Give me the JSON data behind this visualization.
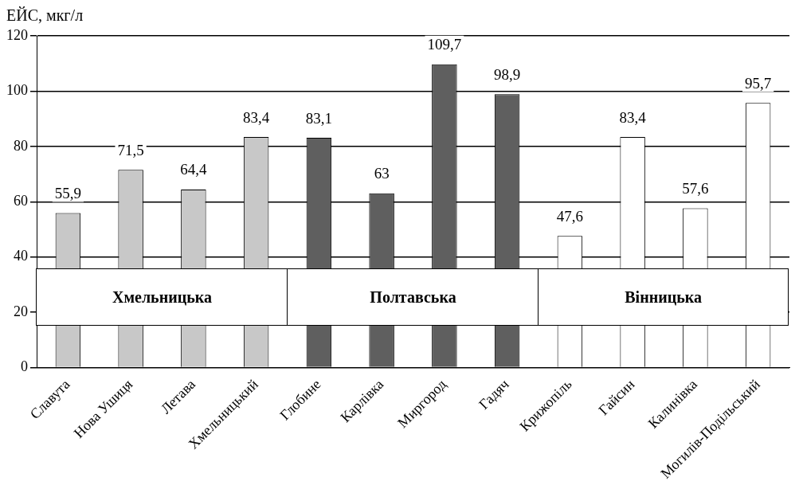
{
  "chart_data": {
    "type": "bar",
    "ylabel": "ЕЙС, мкг/л",
    "categories": [
      "Славута",
      "Нова Ушиця",
      "Летава",
      "Хмельницький",
      "Глобине",
      "Карлівка",
      "Миргород",
      "Гадяч",
      "Крижопіль",
      "Гайсин",
      "Калинівка",
      "Могилів-Подільський"
    ],
    "values": [
      55.9,
      71.5,
      64.4,
      83.4,
      83.1,
      63,
      109.7,
      98.9,
      47.6,
      83.4,
      57.6,
      95.7
    ],
    "value_labels": [
      "55,9",
      "71,5",
      "64,4",
      "83,4",
      "83,1",
      "63",
      "109,7",
      "98,9",
      "47,6",
      "83,4",
      "57,6",
      "95,7"
    ],
    "colors": [
      "#c8c8c8",
      "#c8c8c8",
      "#c8c8c8",
      "#c8c8c8",
      "#5f5f5f",
      "#5f5f5f",
      "#5f5f5f",
      "#5f5f5f",
      "#ffffff",
      "#ffffff",
      "#ffffff",
      "#ffffff"
    ],
    "annotations": [
      "Хмельницька",
      "Полтавська",
      "Вінницька"
    ],
    "ylim": [
      0,
      120
    ],
    "yticks": [
      0,
      20,
      40,
      60,
      80,
      100,
      120
    ],
    "grid": "y",
    "legend": false
  }
}
